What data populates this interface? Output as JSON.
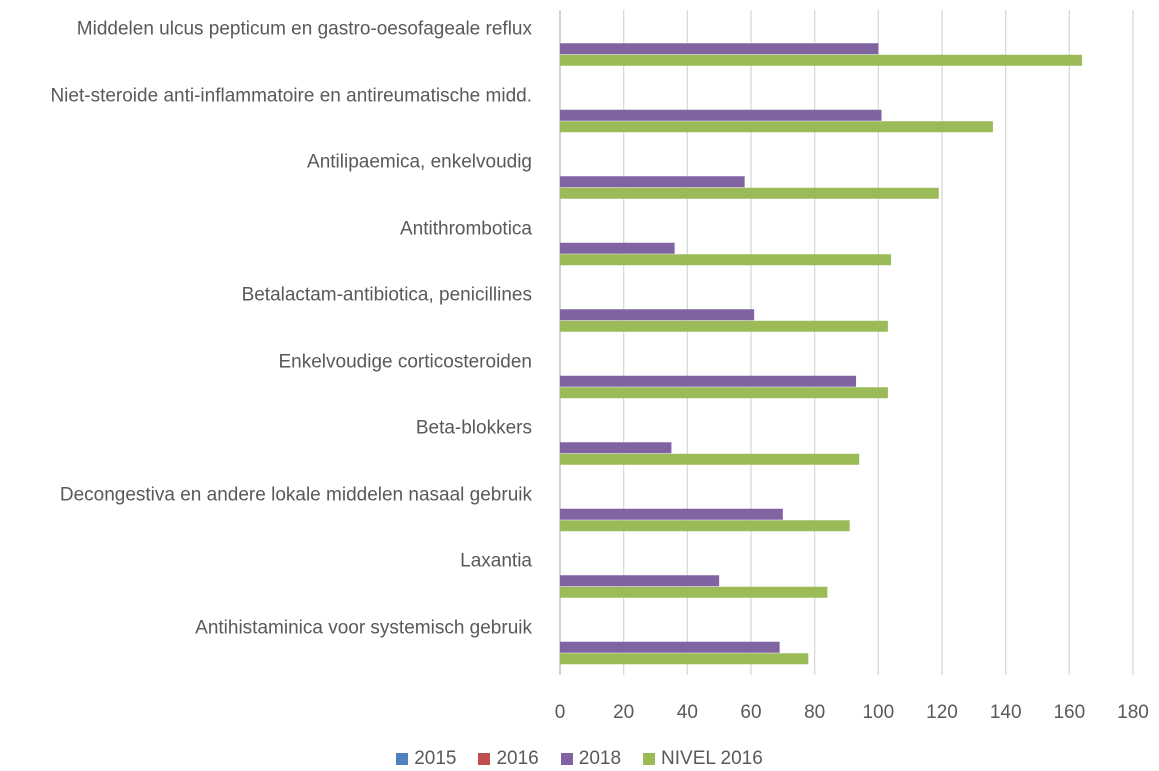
{
  "chart_data": {
    "type": "barh",
    "categories": [
      "Middelen ulcus pepticum en gastro-oesofageale reflux",
      "Niet-steroide anti-inflammatoire en antireumatische midd.",
      "Antilipaemica, enkelvoudig",
      "Antithrombotica",
      "Betalactam-antibiotica, penicillines",
      "Enkelvoudige corticosteroiden",
      "Beta-blokkers",
      "Decongestiva en andere lokale middelen nasaal gebruik",
      "Laxantia",
      "Antihistaminica voor systemisch gebruik"
    ],
    "series": [
      {
        "name": "2015",
        "color": "#4f81bd",
        "values": [
          null,
          null,
          null,
          null,
          null,
          null,
          null,
          null,
          null,
          null
        ]
      },
      {
        "name": "2016",
        "color": "#c0504d",
        "values": [
          null,
          null,
          null,
          null,
          null,
          null,
          null,
          null,
          null,
          null
        ]
      },
      {
        "name": "2018",
        "color": "#8064a2",
        "values": [
          100,
          101,
          58,
          36,
          61,
          93,
          35,
          70,
          50,
          69
        ]
      },
      {
        "name": "NIVEL 2016",
        "color": "#9bbb59",
        "values": [
          164,
          136,
          119,
          104,
          103,
          103,
          94,
          91,
          84,
          78
        ]
      }
    ],
    "xlim": [
      0,
      180
    ],
    "xticks": [
      0,
      20,
      40,
      60,
      80,
      100,
      120,
      140,
      160,
      180
    ],
    "grid": true,
    "legend": "bottom"
  }
}
